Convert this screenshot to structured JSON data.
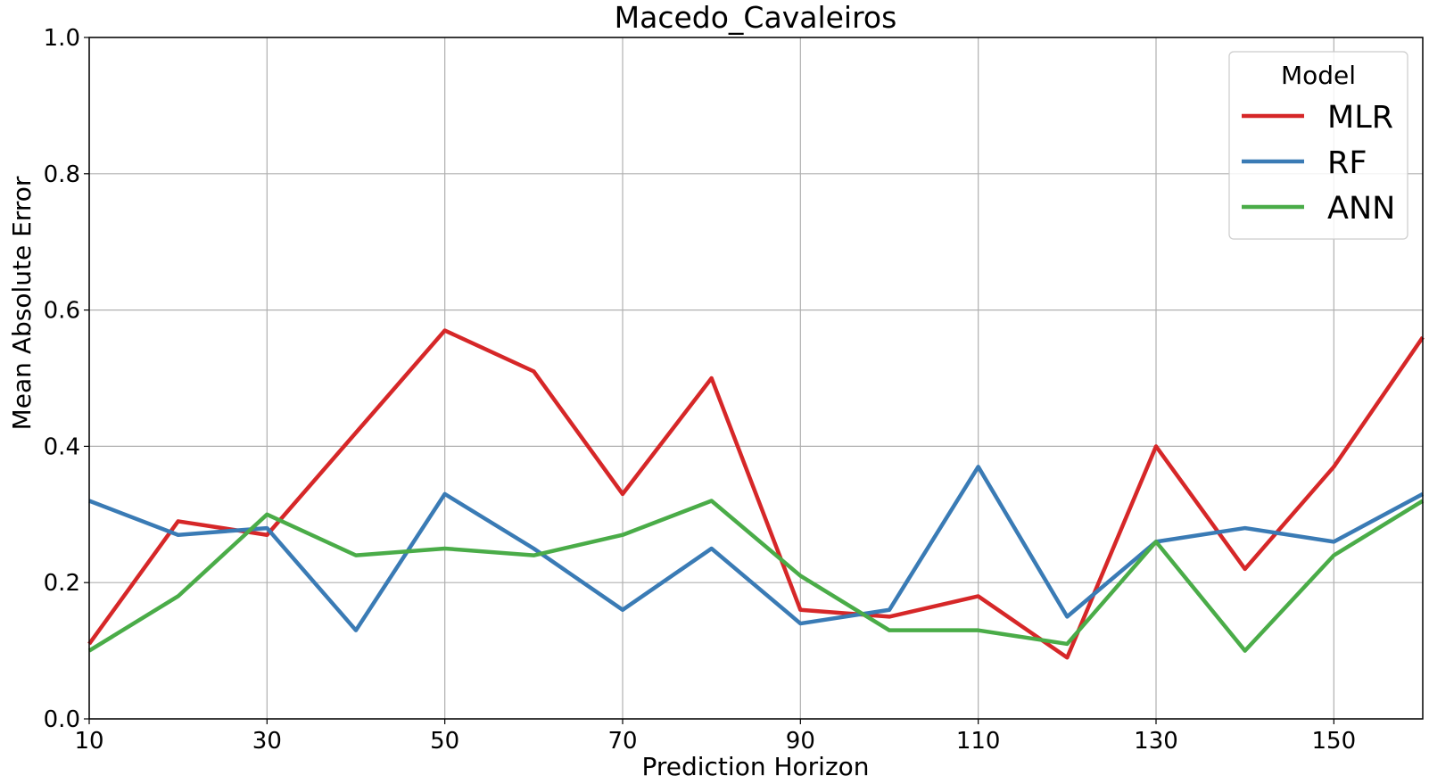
{
  "chart_data": {
    "type": "line",
    "title": "Macedo_Cavaleiros",
    "xlabel": "Prediction Horizon",
    "ylabel": "Mean Absolute Error",
    "x": [
      10,
      20,
      30,
      40,
      50,
      60,
      70,
      80,
      90,
      100,
      110,
      120,
      130,
      140,
      150,
      160
    ],
    "xlim": [
      10,
      160
    ],
    "ylim": [
      0.0,
      1.0
    ],
    "xticks": [
      10,
      30,
      50,
      70,
      90,
      110,
      130,
      150
    ],
    "xtick_labels": [
      "10",
      "30",
      "50",
      "70",
      "90",
      "110",
      "130",
      "150"
    ],
    "yticks": [
      0.0,
      0.2,
      0.4,
      0.6,
      0.8,
      1.0
    ],
    "ytick_labels": [
      "0.0",
      "0.2",
      "0.4",
      "0.6",
      "0.8",
      "1.0"
    ],
    "grid": true,
    "legend": {
      "title": "Model",
      "placement": "top-right"
    },
    "series": [
      {
        "name": "MLR",
        "color": "#d62728",
        "values": [
          0.11,
          0.29,
          0.27,
          0.42,
          0.57,
          0.51,
          0.33,
          0.5,
          0.16,
          0.15,
          0.18,
          0.09,
          0.4,
          0.22,
          0.37,
          0.56
        ]
      },
      {
        "name": "RF",
        "color": "#3a7bb5",
        "values": [
          0.32,
          0.27,
          0.28,
          0.13,
          0.33,
          0.25,
          0.16,
          0.25,
          0.14,
          0.16,
          0.37,
          0.15,
          0.26,
          0.28,
          0.26,
          0.33
        ]
      },
      {
        "name": "ANN",
        "color": "#4aac48",
        "values": [
          0.1,
          0.18,
          0.3,
          0.24,
          0.25,
          0.24,
          0.27,
          0.32,
          0.21,
          0.13,
          0.13,
          0.11,
          0.26,
          0.1,
          0.24,
          0.32
        ]
      }
    ]
  }
}
